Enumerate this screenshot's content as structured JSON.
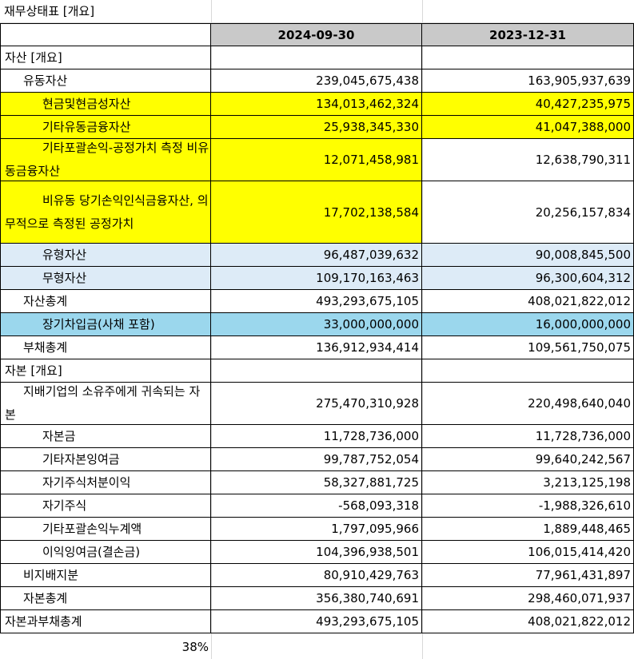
{
  "sheet": {
    "title": "재무상태표 [개요]",
    "headers": [
      "2024-09-30",
      "2023-12-31"
    ],
    "rows": [
      {
        "label": "자산 [개요]",
        "v1": "",
        "v2": ""
      },
      {
        "label": "유동자산",
        "v1": "239,045,675,438",
        "v2": "163,905,937,639"
      },
      {
        "label": "현금및현금성자산",
        "v1": "134,013,462,324",
        "v2": "40,427,235,975"
      },
      {
        "label": "기타유동금융자산",
        "v1": "25,938,345,330",
        "v2": "41,047,388,000"
      },
      {
        "label": "기타포괄손익-공정가치 측정 비유동금융자산",
        "v1": "12,071,458,981",
        "v2": "12,638,790,311"
      },
      {
        "label": "비유동 당기손익인식금융자산, 의무적으로 측정된 공정가치",
        "v1": "17,702,138,584",
        "v2": "20,256,157,834"
      },
      {
        "label": "유형자산",
        "v1": "96,487,039,632",
        "v2": "90,008,845,500"
      },
      {
        "label": "무형자산",
        "v1": "109,170,163,463",
        "v2": "96,300,604,312"
      },
      {
        "label": "자산총계",
        "v1": "493,293,675,105",
        "v2": "408,021,822,012"
      },
      {
        "label": "장기차입금(사채 포함)",
        "v1": "33,000,000,000",
        "v2": "16,000,000,000"
      },
      {
        "label": "부채총계",
        "v1": "136,912,934,414",
        "v2": "109,561,750,075"
      },
      {
        "label": "자본 [개요]",
        "v1": "",
        "v2": ""
      },
      {
        "label": "지배기업의 소유주에게 귀속되는 자본",
        "v1": "275,470,310,928",
        "v2": "220,498,640,040"
      },
      {
        "label": "자본금",
        "v1": "11,728,736,000",
        "v2": "11,728,736,000"
      },
      {
        "label": "기타자본잉여금",
        "v1": "99,787,752,054",
        "v2": "99,640,242,567"
      },
      {
        "label": "자기주식처분이익",
        "v1": "58,327,881,725",
        "v2": "3,213,125,198"
      },
      {
        "label": "자기주식",
        "v1": "-568,093,318",
        "v2": "-1,988,326,610"
      },
      {
        "label": "기타포괄손익누계액",
        "v1": "1,797,095,966",
        "v2": "1,889,448,465"
      },
      {
        "label": "이익잉여금(결손금)",
        "v1": "104,396,938,501",
        "v2": "106,015,414,420"
      },
      {
        "label": "비지배지분",
        "v1": "80,910,429,763",
        "v2": "77,961,431,897"
      },
      {
        "label": "자본총계",
        "v1": "356,380,740,691",
        "v2": "298,460,071,937"
      },
      {
        "label": "자본과부채총계",
        "v1": "493,293,675,105",
        "v2": "408,021,822,012"
      }
    ],
    "footer_value": "38%"
  },
  "colors": {
    "header_gray": "#c9c9c9",
    "highlight_yellow": "#ffff00",
    "highlight_lightblue": "#ddebf7",
    "highlight_skyblue": "#9bd7ed",
    "gridline": "#d9d9d9"
  }
}
